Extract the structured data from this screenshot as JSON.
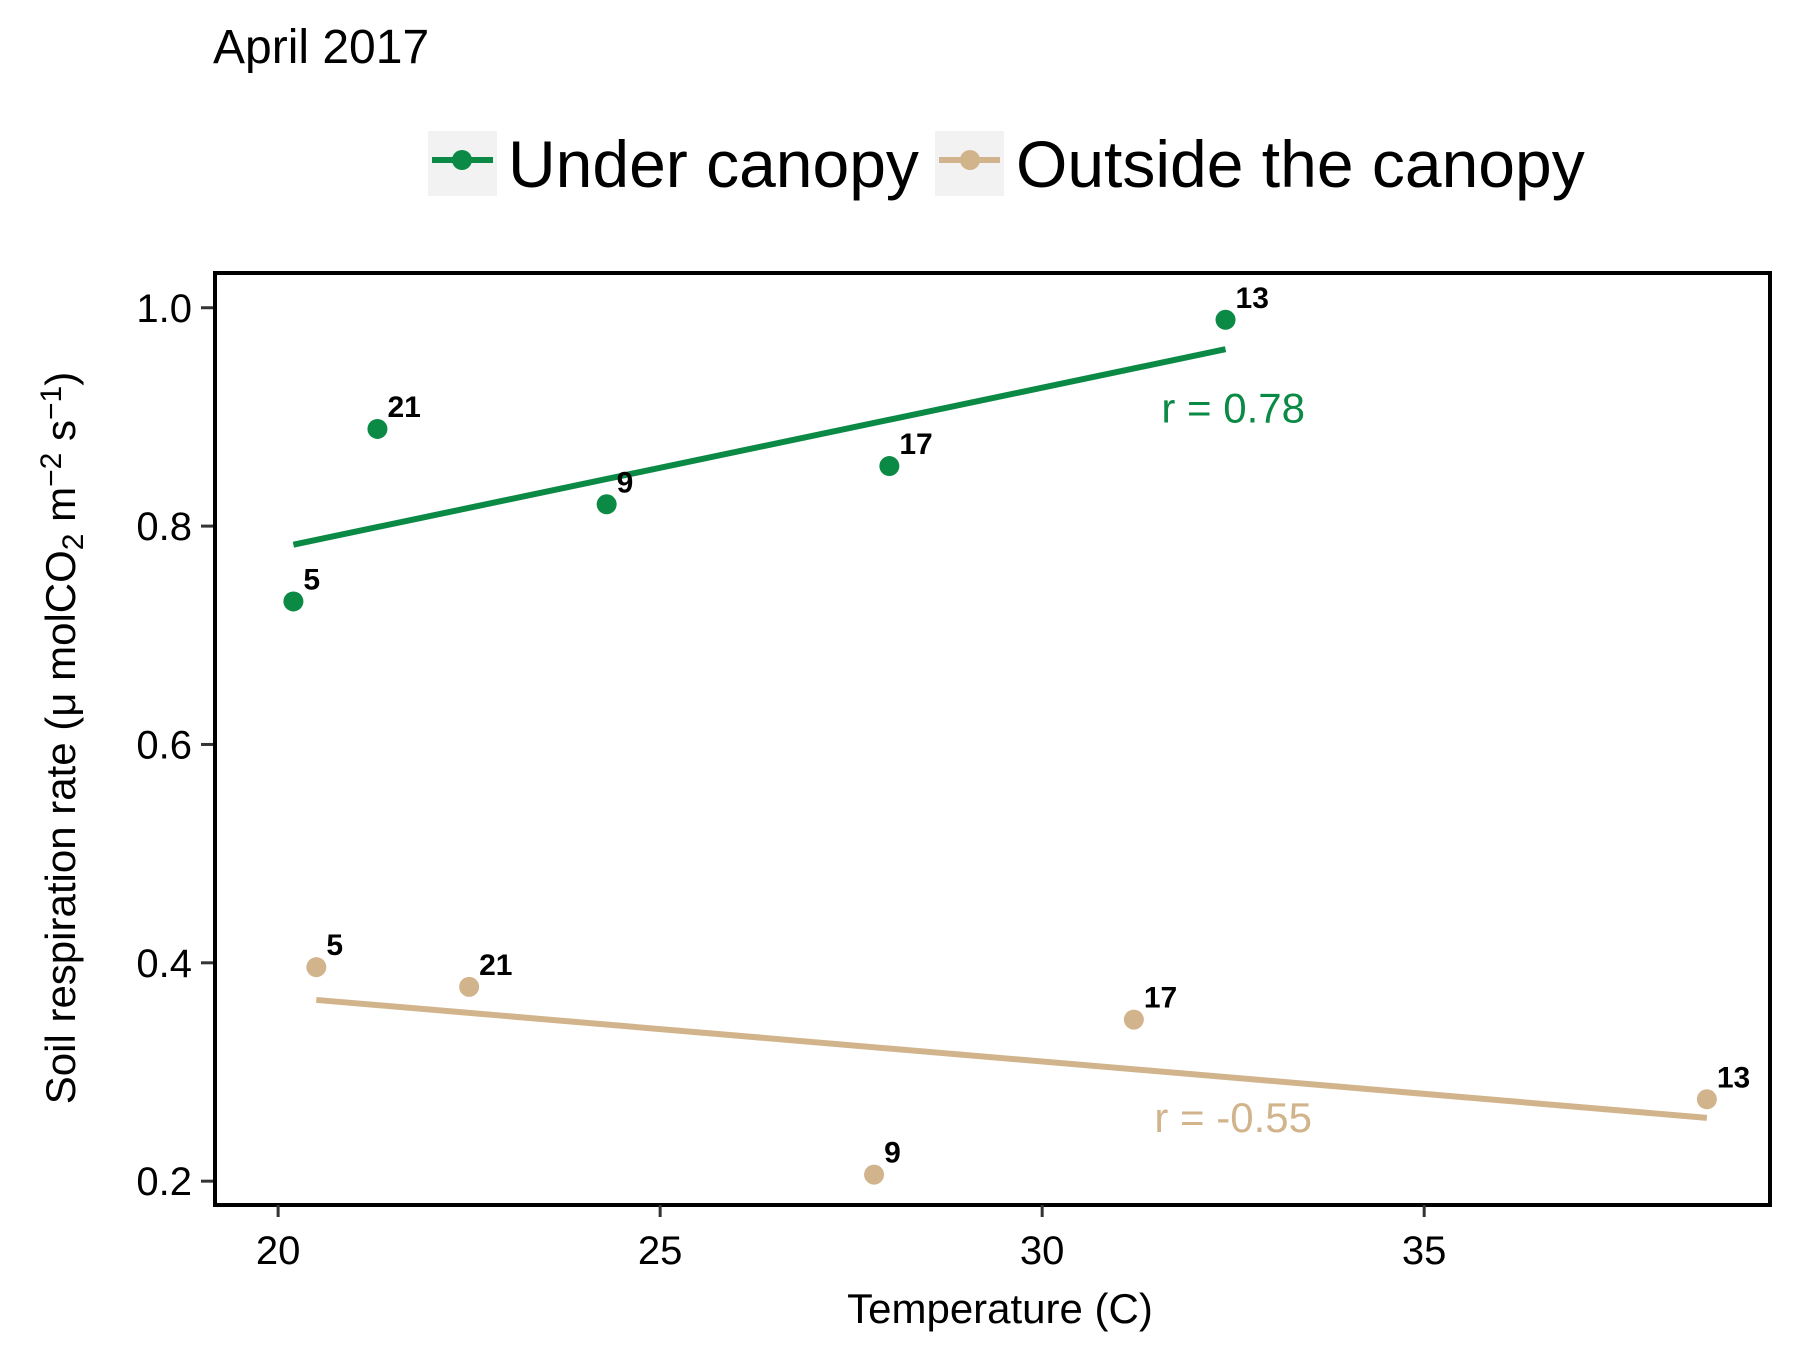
{
  "chart_data": {
    "type": "scatter",
    "title": "April 2017",
    "xlabel": "Temperature (C)",
    "ylabel": {
      "prefix": "Soil respiration rate  (",
      "mu": "μ",
      "mol": " molCO",
      "sub": "2",
      "m": " m",
      "sup1": "−2",
      "s": " s",
      "sup2": "−1",
      "close": ")"
    },
    "xlim": [
      19.2,
      39.5
    ],
    "ylim": [
      0.18,
      1.03
    ],
    "x_ticks": [
      20,
      25,
      30,
      35
    ],
    "y_ticks": [
      0.2,
      0.4,
      0.6,
      0.8,
      1.0
    ],
    "x_tick_labels": [
      "20",
      "25",
      "30",
      "35"
    ],
    "y_tick_labels": [
      "0.2",
      "0.4",
      "0.6",
      "0.8",
      "1.0"
    ],
    "grid": false,
    "legend_position": "top",
    "series": [
      {
        "name": "Under canopy",
        "color": "#0b8a45",
        "points": [
          {
            "x": 20.2,
            "y": 0.731,
            "label": "5"
          },
          {
            "x": 21.3,
            "y": 0.889,
            "label": "21"
          },
          {
            "x": 24.3,
            "y": 0.82,
            "label": "9"
          },
          {
            "x": 28.0,
            "y": 0.855,
            "label": "17"
          },
          {
            "x": 32.4,
            "y": 0.989,
            "label": "13"
          }
        ],
        "trend": {
          "x": [
            20.2,
            32.4
          ],
          "y": [
            0.783,
            0.962
          ]
        },
        "r_label": "r = 0.78",
        "r_pos": {
          "x": 32.5,
          "y": 0.895
        }
      },
      {
        "name": "Outside the canopy",
        "color": "#d2b48c",
        "points": [
          {
            "x": 20.5,
            "y": 0.396,
            "label": "5"
          },
          {
            "x": 22.5,
            "y": 0.378,
            "label": "21"
          },
          {
            "x": 27.8,
            "y": 0.206,
            "label": "9"
          },
          {
            "x": 31.2,
            "y": 0.348,
            "label": "17"
          },
          {
            "x": 38.7,
            "y": 0.275,
            "label": "13"
          }
        ],
        "trend": {
          "x": [
            20.5,
            38.7
          ],
          "y": [
            0.366,
            0.258
          ]
        },
        "r_label": "r = -0.55",
        "r_pos": {
          "x": 32.5,
          "y": 0.245
        }
      }
    ]
  }
}
